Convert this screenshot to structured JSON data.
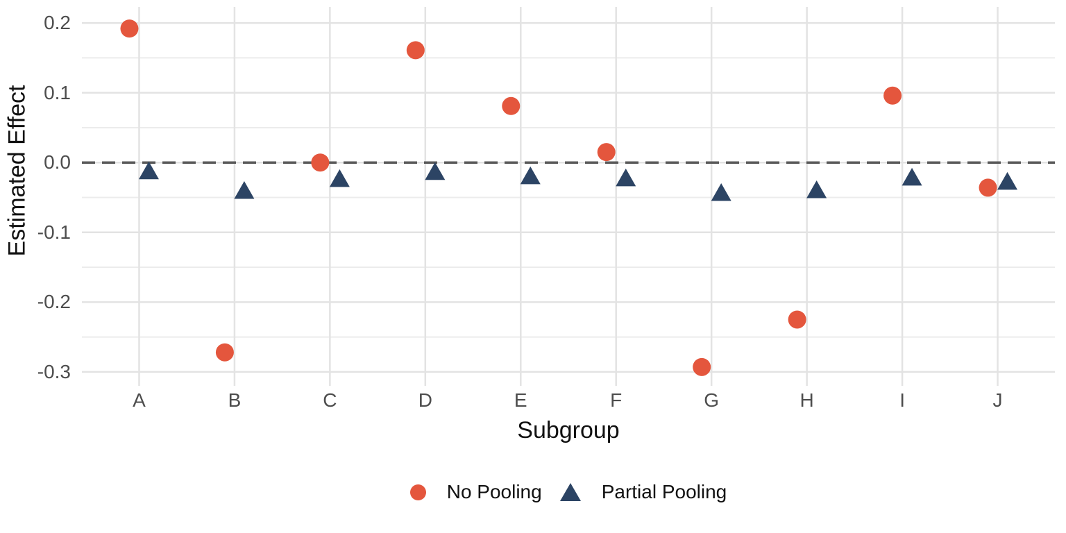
{
  "chart_data": {
    "type": "scatter",
    "title": "",
    "xlabel": "Subgroup",
    "ylabel": "Estimated Effect",
    "categories": [
      "A",
      "B",
      "C",
      "D",
      "E",
      "F",
      "G",
      "H",
      "I",
      "J"
    ],
    "series": [
      {
        "name": "No Pooling",
        "marker": "circle",
        "color": "#E4563D",
        "values": [
          0.192,
          -0.272,
          0.0,
          0.161,
          0.081,
          0.015,
          -0.293,
          -0.225,
          0.096,
          -0.036
        ]
      },
      {
        "name": "Partial Pooling",
        "marker": "triangle",
        "color": "#2C4464",
        "values": [
          -0.012,
          -0.04,
          -0.023,
          -0.013,
          -0.019,
          -0.022,
          -0.043,
          -0.039,
          -0.021,
          -0.027
        ]
      }
    ],
    "y_ticks": [
      0.2,
      0.1,
      0.0,
      -0.1,
      -0.2,
      -0.3
    ],
    "y_tick_labels": [
      "0.2",
      "0.1",
      "0.0",
      "-0.1",
      "-0.2",
      "-0.3"
    ],
    "ylim": [
      -0.32,
      0.223
    ],
    "minor_grid": true,
    "grid": true,
    "grid_color": "#E3E3E3",
    "minor_grid_color": "#ECECEC",
    "reference_line": {
      "y": 0,
      "style": "dashed",
      "color": "#595959"
    },
    "legend_position": "bottom",
    "axis_text_color": "#4d4d4d",
    "axis_title_color": "#111111",
    "background": "#FFFFFF"
  }
}
